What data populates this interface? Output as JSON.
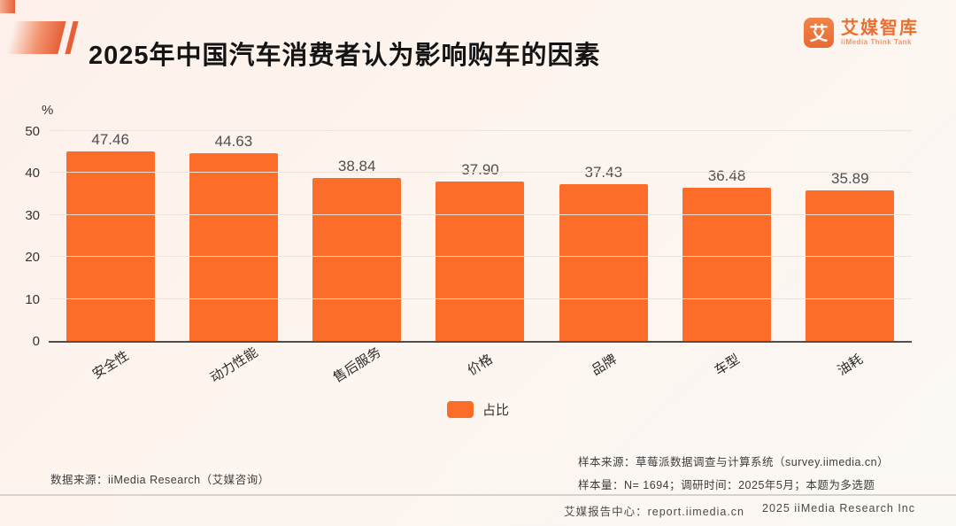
{
  "header": {
    "logo": {
      "icon_char": "艾",
      "name": "艾媒智库",
      "subtitle": "iiMedia Think Tank"
    }
  },
  "chart_data": {
    "type": "bar",
    "title": "2025年中国汽车消费者认为影响购车的因素",
    "categories": [
      "安全性",
      "动力性能",
      "售后服务",
      "价格",
      "品牌",
      "车型",
      "油耗"
    ],
    "values": [
      47.46,
      44.63,
      38.84,
      37.9,
      37.43,
      36.48,
      35.89
    ],
    "ylabel": "%",
    "xlabel": "",
    "ylim": [
      0,
      50
    ],
    "yticks": [
      0,
      10,
      20,
      30,
      40,
      50
    ],
    "grid": true,
    "bar_color": "#fb6d28",
    "legend": [
      {
        "label": "占比",
        "color": "#fb6d28"
      }
    ],
    "legend_position": "bottom"
  },
  "colors": {
    "accent_orange": "#ec6f30",
    "bar_orange": "#fb6d28",
    "background": "#fdf4ee",
    "axis": "#4f4f4f"
  },
  "footnotes": {
    "data_source": "数据来源：iiMedia Research（艾媒咨询）",
    "sample_source": "样本来源：草莓派数据调查与计算系统（survey.iimedia.cn）",
    "sample_info": "样本量：N= 1694；调研时间：2025年5月；本题为多选题"
  },
  "footer": {
    "report_center": "艾媒报告中心：report.iimedia.cn",
    "copyright": "2025 iiMedia Research Inc"
  }
}
